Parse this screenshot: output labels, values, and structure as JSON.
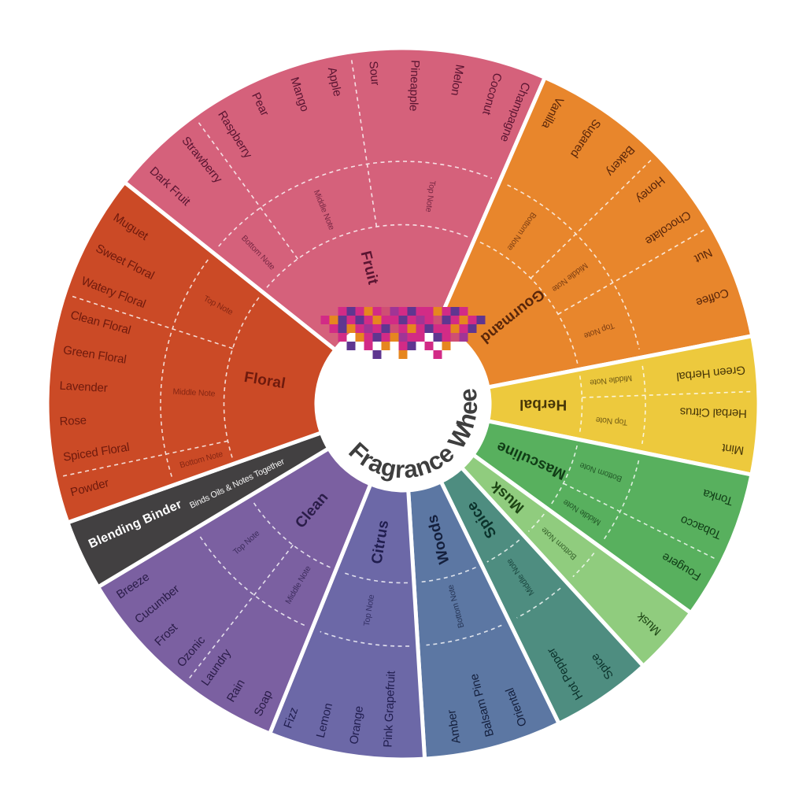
{
  "title": {
    "text": "Fragrance Wheel",
    "color": "#3e3e3e"
  },
  "center_mosaic": {
    "palette": [
      "#d22b86",
      "#e6861f",
      "#5f3690",
      "#a03595",
      "#cf4f73"
    ],
    "pattern": [
      [
        -1,
        -1,
        0,
        2,
        0,
        1,
        0,
        4,
        3,
        0,
        2,
        0,
        0,
        1,
        0,
        2,
        0,
        -1,
        -1
      ],
      [
        0,
        1,
        2,
        0,
        2,
        0,
        1,
        0,
        0,
        2,
        0,
        3,
        0,
        4,
        2,
        0,
        1,
        0,
        2
      ],
      [
        -1,
        0,
        2,
        1,
        0,
        3,
        0,
        2,
        4,
        0,
        1,
        0,
        2,
        0,
        0,
        1,
        0,
        2,
        -1
      ],
      [
        -1,
        -1,
        0,
        -1,
        1,
        0,
        2,
        0,
        1,
        3,
        0,
        0,
        -1,
        2,
        0,
        4,
        3,
        -1,
        -1
      ],
      [
        -1,
        -1,
        -1,
        2,
        -1,
        0,
        -1,
        1,
        -1,
        0,
        2,
        -1,
        0,
        -1,
        1,
        -1,
        -1,
        -1,
        -1
      ],
      [
        -1,
        -1,
        -1,
        -1,
        -1,
        -1,
        2,
        -1,
        -1,
        1,
        -1,
        -1,
        -1,
        0,
        -1,
        -1,
        -1,
        -1,
        -1
      ]
    ]
  },
  "wheel": {
    "dash_color": "#ffffff",
    "separator_color": "#ffffff",
    "categories": [
      {
        "name": "Fruit",
        "color": "#d5617b",
        "text_color": "#591431",
        "start_deg": 308.5,
        "end_deg": 383.5,
        "group_dividers_deg": [
          324,
          351.5
        ],
        "note_groups": [
          {
            "label": "Bottom Note",
            "angle_deg": 316.2
          },
          {
            "label": "Middle Note",
            "angle_deg": 337.8
          },
          {
            "label": "Top Note",
            "angle_deg": 7.5
          }
        ],
        "items": [
          {
            "label": "Dark Fruit",
            "angle_deg": 313
          },
          {
            "label": "Strawberry",
            "angle_deg": 320.5
          },
          {
            "label": "Raspberry",
            "angle_deg": 328
          },
          {
            "label": "Pear",
            "angle_deg": 334.5
          },
          {
            "label": "Mango",
            "angle_deg": 341.5
          },
          {
            "label": "Apple",
            "angle_deg": 348
          },
          {
            "label": "Sour",
            "angle_deg": 355
          },
          {
            "label": "Pineapple",
            "angle_deg": 2
          },
          {
            "label": "Melon",
            "angle_deg": 9.5
          },
          {
            "label": "Coconut",
            "angle_deg": 16
          },
          {
            "label": "Champagne",
            "angle_deg": 21
          }
        ]
      },
      {
        "name": "Gourmand",
        "color": "#e8862c",
        "text_color": "#59260a",
        "start_deg": 23.5,
        "end_deg": 79,
        "group_dividers_deg": [
          45.5,
          60
        ],
        "note_groups": [
          {
            "label": "Bottom Note",
            "angle_deg": 34.5
          },
          {
            "label": "Middle Note",
            "angle_deg": 52.8
          },
          {
            "label": "Top Note",
            "angle_deg": 69.5
          }
        ],
        "items": [
          {
            "label": "Vanilla",
            "angle_deg": 27.2
          },
          {
            "label": "Sugared",
            "angle_deg": 34.5
          },
          {
            "label": "Bakery",
            "angle_deg": 41.8
          },
          {
            "label": "Honey",
            "angle_deg": 49.1
          },
          {
            "label": "Chocolate",
            "angle_deg": 56.4
          },
          {
            "label": "Nut",
            "angle_deg": 63.7
          },
          {
            "label": "Coffee",
            "angle_deg": 71
          }
        ]
      },
      {
        "name": "Herbal",
        "color": "#edc93d",
        "text_color": "#473608",
        "start_deg": 79,
        "end_deg": 101.5,
        "group_dividers_deg": [
          88
        ],
        "note_groups": [
          {
            "label": "Middle Note",
            "angle_deg": 83.5
          },
          {
            "label": "Top Note",
            "angle_deg": 94.7
          }
        ],
        "items": [
          {
            "label": "Green Herbal",
            "angle_deg": 84.3
          },
          {
            "label": "Herbal Citrus",
            "angle_deg": 91.6
          },
          {
            "label": "Mint",
            "angle_deg": 97.8
          }
        ]
      },
      {
        "name": "Masculine",
        "color": "#58b05e",
        "text_color": "#103c16",
        "start_deg": 101.5,
        "end_deg": 126,
        "group_dividers_deg": [
          116.4
        ],
        "note_groups": [
          {
            "label": "Bottom Note",
            "angle_deg": 109
          },
          {
            "label": "Middle Note",
            "angle_deg": 121.2
          }
        ],
        "items": [
          {
            "label": "Tonka",
            "angle_deg": 106.5
          },
          {
            "label": "Tobacco",
            "angle_deg": 112.5
          },
          {
            "label": "Fougere",
            "angle_deg": 120.3
          }
        ]
      },
      {
        "name": "Musk",
        "color": "#90cc7e",
        "text_color": "#1d4514",
        "start_deg": 126,
        "end_deg": 137.5,
        "group_dividers_deg": [],
        "note_groups": [
          {
            "label": "Bottom Note",
            "angle_deg": 131.8
          }
        ],
        "items": [
          {
            "label": "Musk",
            "angle_deg": 131.8
          }
        ]
      },
      {
        "name": "Spice",
        "color": "#4e8d80",
        "text_color": "#0b322b",
        "start_deg": 137.5,
        "end_deg": 154,
        "group_dividers_deg": [],
        "note_groups": [
          {
            "label": "Middle Note",
            "angle_deg": 145.8
          }
        ],
        "items": [
          {
            "label": "Spice",
            "angle_deg": 142.8
          },
          {
            "label": "Hot Pepper",
            "angle_deg": 149
          }
        ]
      },
      {
        "name": "Woods",
        "color": "#5c77a3",
        "text_color": "#141f3c",
        "start_deg": 154,
        "end_deg": 176.5,
        "group_dividers_deg": [],
        "note_groups": [
          {
            "label": "Bottom Note",
            "angle_deg": 165.3
          }
        ],
        "items": [
          {
            "label": "Oriental",
            "angle_deg": 159.5
          },
          {
            "label": "Balsam Pine",
            "angle_deg": 165.3
          },
          {
            "label": "Amber",
            "angle_deg": 171
          }
        ]
      },
      {
        "name": "Citrus",
        "color": "#6c68a7",
        "text_color": "#201d4e",
        "start_deg": 176.5,
        "end_deg": 202,
        "group_dividers_deg": [],
        "note_groups": [
          {
            "label": "Top Note",
            "angle_deg": 189.3
          }
        ],
        "items": [
          {
            "label": "Pink Grapefruit",
            "angle_deg": 182.5
          },
          {
            "label": "Orange",
            "angle_deg": 188.2
          },
          {
            "label": "Lemon",
            "angle_deg": 193.9
          },
          {
            "label": "Fizz",
            "angle_deg": 199.6
          }
        ]
      },
      {
        "name": "Clean",
        "color": "#7b60a1",
        "text_color": "#2a1c48",
        "start_deg": 202,
        "end_deg": 239,
        "group_dividers_deg": [
          217.9
        ],
        "note_groups": [
          {
            "label": "Middle Note",
            "angle_deg": 210
          },
          {
            "label": "Top Note",
            "angle_deg": 228.4
          }
        ],
        "items": [
          {
            "label": "Soap",
            "angle_deg": 205
          },
          {
            "label": "Rain",
            "angle_deg": 210.2
          },
          {
            "label": "Laundry",
            "angle_deg": 215.3
          },
          {
            "label": "Ozonic",
            "angle_deg": 220.5
          },
          {
            "label": "Frost",
            "angle_deg": 225.7
          },
          {
            "label": "Cucumber",
            "angle_deg": 230.8
          },
          {
            "label": "Breeze",
            "angle_deg": 236
          }
        ]
      },
      {
        "name": "Blending Binder",
        "color": "#424041",
        "text_color": "#ffffff",
        "start_deg": 239,
        "end_deg": 250.5,
        "is_binder": true,
        "subtitle": "Binds Oils & Notes Together",
        "group_dividers_deg": [],
        "note_groups": [],
        "items": []
      },
      {
        "name": "Floral",
        "color": "#cb4a26",
        "text_color": "#6e1a0d",
        "start_deg": 250.5,
        "end_deg": 308.5,
        "group_dividers_deg": [
          258,
          288
        ],
        "note_groups": [
          {
            "label": "Bottom Note",
            "angle_deg": 254.5
          },
          {
            "label": "Middle Note",
            "angle_deg": 273
          },
          {
            "label": "Top Note",
            "angle_deg": 298
          }
        ],
        "items": [
          {
            "label": "Powder",
            "angle_deg": 255
          },
          {
            "label": "Spiced Floral",
            "angle_deg": 261
          },
          {
            "label": "Rose",
            "angle_deg": 267
          },
          {
            "label": "Lavender",
            "angle_deg": 273
          },
          {
            "label": "Green Floral",
            "angle_deg": 279
          },
          {
            "label": "Clean Floral",
            "angle_deg": 285
          },
          {
            "label": "Watery Floral",
            "angle_deg": 291
          },
          {
            "label": "Sweet Floral",
            "angle_deg": 297
          },
          {
            "label": "Muguet",
            "angle_deg": 303
          }
        ]
      }
    ]
  }
}
